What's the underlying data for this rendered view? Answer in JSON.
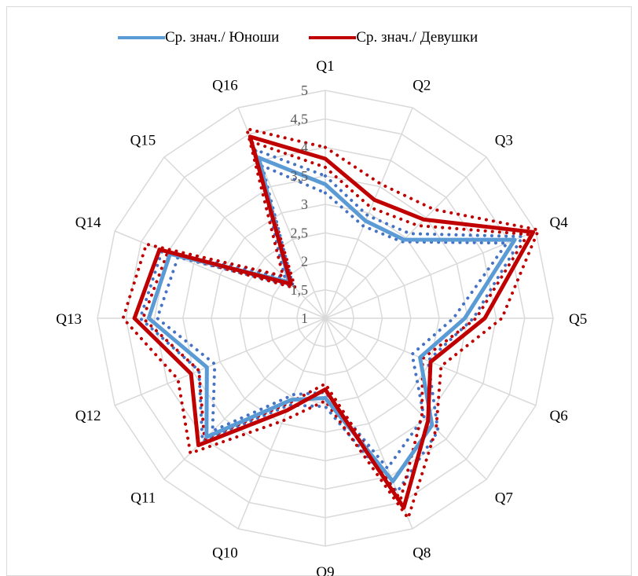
{
  "chart_data": {
    "type": "radar",
    "categories": [
      "Q1",
      "Q2",
      "Q3",
      "Q4",
      "Q5",
      "Q6",
      "Q7",
      "Q8",
      "Q9",
      "Q10",
      "Q11",
      "Q12",
      "Q13",
      "Q14",
      "Q15",
      "Q16"
    ],
    "rlim": [
      1,
      5
    ],
    "ticks": [
      "1",
      "1,5",
      "2",
      "2,5",
      "3",
      "3,5",
      "4",
      "4,5",
      "5"
    ],
    "tick_values": [
      1,
      1.5,
      2,
      2.5,
      3,
      3.5,
      4,
      4.5,
      5
    ],
    "grid": true,
    "legend_position": "top",
    "series": [
      {
        "name": "Ср. знач./ Юноши",
        "color": "#5b9bd5",
        "style": "solid",
        "values": [
          3.35,
          2.85,
          2.95,
          4.6,
          3.45,
          2.8,
          3.65,
          4.1,
          2.4,
          2.55,
          3.95,
          3.25,
          4.1,
          3.95,
          1.9,
          4.05
        ]
      },
      {
        "name": "",
        "color": "#4472c4",
        "style": "dotted",
        "values": [
          3.2,
          2.75,
          2.9,
          4.45,
          3.25,
          2.65,
          3.45,
          3.85,
          2.3,
          2.45,
          3.8,
          3.1,
          3.95,
          3.8,
          1.8,
          3.9
        ]
      },
      {
        "name": "",
        "color": "#4472c4",
        "style": "dotted",
        "values": [
          3.5,
          2.95,
          3.1,
          4.75,
          3.6,
          2.95,
          3.8,
          4.3,
          2.55,
          2.65,
          4.05,
          3.4,
          4.25,
          4.1,
          2.0,
          4.2
        ]
      },
      {
        "name": "Ср. знач./ Девушки",
        "color": "#c00000",
        "style": "solid",
        "values": [
          3.8,
          3.25,
          3.45,
          4.95,
          3.8,
          3.0,
          3.55,
          4.6,
          2.25,
          2.75,
          4.15,
          3.55,
          4.35,
          4.15,
          1.85,
          4.45
        ]
      },
      {
        "name": "",
        "color": "#c00000",
        "style": "dotted",
        "values": [
          3.65,
          3.1,
          3.3,
          4.85,
          3.65,
          2.85,
          3.4,
          4.45,
          2.15,
          2.6,
          4.0,
          3.4,
          4.2,
          4.0,
          1.75,
          4.35
        ]
      },
      {
        "name": "",
        "color": "#c00000",
        "style": "dotted",
        "values": [
          4.0,
          3.55,
          3.7,
          5.05,
          4.1,
          3.2,
          3.75,
          4.8,
          2.45,
          2.95,
          4.35,
          3.8,
          4.55,
          4.4,
          2.05,
          4.6
        ]
      }
    ]
  }
}
